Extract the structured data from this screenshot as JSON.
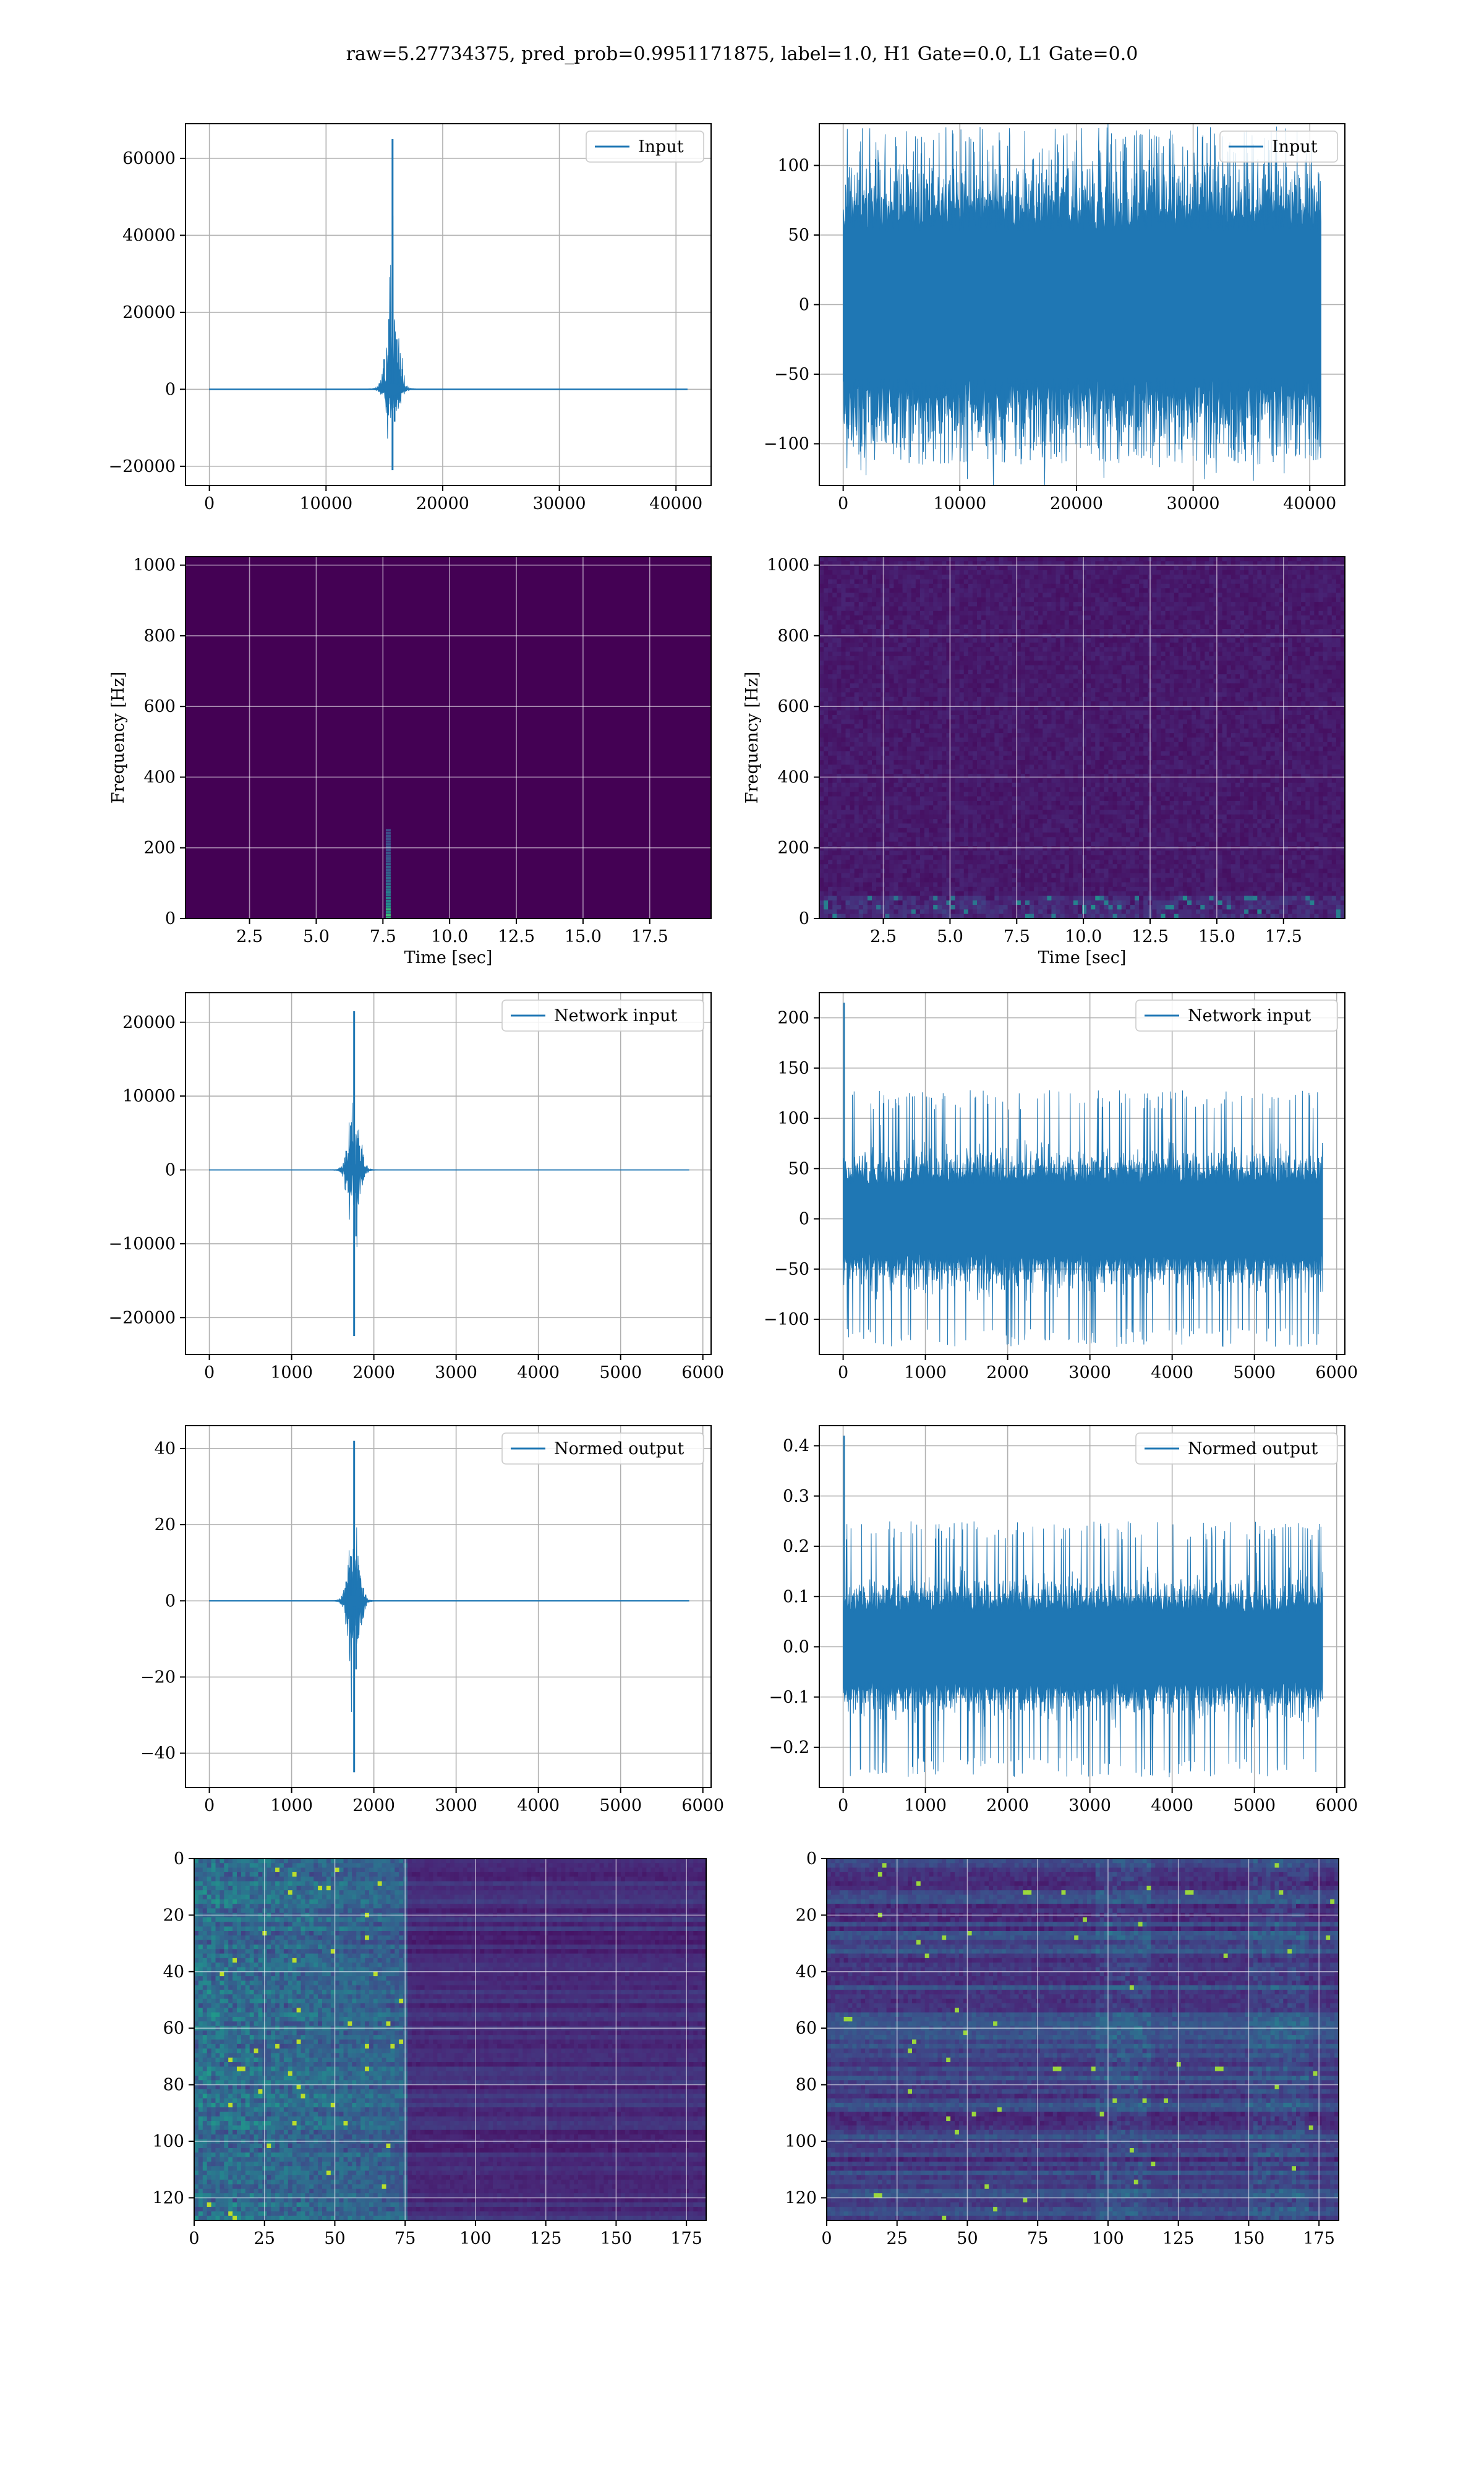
{
  "figure": {
    "suptitle": "raw=5.27734375, pred_prob=0.9951171875, label=1.0, H1 Gate=0.0, L1 Gate=0.0",
    "line_color": "#1f77b4"
  },
  "chart_data": [
    {
      "id": "h1-input",
      "type": "line",
      "legend": "Input",
      "xlim": [
        -2048,
        43008
      ],
      "ylim": [
        -25000,
        69000
      ],
      "xticks": [
        0,
        10000,
        20000,
        30000,
        40000
      ],
      "yticks": [
        -20000,
        0,
        20000,
        40000,
        60000
      ],
      "xticklabels": [
        "0",
        "10000",
        "20000",
        "30000",
        "40000"
      ],
      "yticklabels": [
        "−20000",
        "0",
        "20000",
        "40000",
        "60000"
      ],
      "signal": {
        "kind": "burst",
        "x_end": 40960,
        "center": 15700,
        "peak": 65000,
        "trough": -21000,
        "noise": 120,
        "extent": 1200
      }
    },
    {
      "id": "l1-input",
      "type": "line",
      "legend": "Input",
      "xlim": [
        -2048,
        43008
      ],
      "ylim": [
        -130,
        130
      ],
      "xticks": [
        0,
        10000,
        20000,
        30000,
        40000
      ],
      "yticks": [
        -100,
        -50,
        0,
        50,
        100
      ],
      "xticklabels": [
        "0",
        "10000",
        "20000",
        "30000",
        "40000"
      ],
      "yticklabels": [
        "−100",
        "−50",
        "0",
        "50",
        "100"
      ],
      "signal": {
        "kind": "noise",
        "x_end": 40960,
        "band": 70,
        "max": 128,
        "min": -115
      }
    },
    {
      "id": "h1-spectrogram",
      "type": "heatmap",
      "colormap": "viridis",
      "xlabel": "Time [sec]",
      "ylabel": "Frequency [Hz]",
      "xlim": [
        0.1,
        19.8
      ],
      "ylim": [
        0,
        1024
      ],
      "xticks": [
        2.5,
        5.0,
        7.5,
        10.0,
        12.5,
        15.0,
        17.5
      ],
      "yticks": [
        0,
        200,
        400,
        600,
        800,
        1000
      ],
      "xticklabels": [
        "2.5",
        "5.0",
        "7.5",
        "10.0",
        "12.5",
        "15.0",
        "17.5"
      ],
      "yticklabels": [
        "0",
        "200",
        "400",
        "600",
        "800",
        "1000"
      ],
      "signal": {
        "kind": "chirp",
        "time": 7.7,
        "fmax": 250
      }
    },
    {
      "id": "l1-spectrogram",
      "type": "heatmap",
      "colormap": "viridis",
      "xlabel": "Time [sec]",
      "ylabel": "Frequency [Hz]",
      "xlim": [
        0.1,
        19.8
      ],
      "ylim": [
        0,
        1024
      ],
      "xticks": [
        2.5,
        5.0,
        7.5,
        10.0,
        12.5,
        15.0,
        17.5
      ],
      "yticks": [
        0,
        200,
        400,
        600,
        800,
        1000
      ],
      "xticklabels": [
        "2.5",
        "5.0",
        "7.5",
        "10.0",
        "12.5",
        "15.0",
        "17.5"
      ],
      "yticklabels": [
        "0",
        "200",
        "400",
        "600",
        "800",
        "1000"
      ],
      "signal": {
        "kind": "noisefloor"
      }
    },
    {
      "id": "h1-network-input",
      "type": "line",
      "legend": "Network input",
      "xlim": [
        -290,
        6100
      ],
      "ylim": [
        -25000,
        24000
      ],
      "xticks": [
        0,
        1000,
        2000,
        3000,
        4000,
        5000,
        6000
      ],
      "yticks": [
        -20000,
        -10000,
        0,
        10000,
        20000
      ],
      "xticklabels": [
        "0",
        "1000",
        "2000",
        "3000",
        "4000",
        "5000",
        "6000"
      ],
      "yticklabels": [
        "−20000",
        "−10000",
        "0",
        "10000",
        "20000"
      ],
      "signal": {
        "kind": "burst",
        "x_end": 5830,
        "center": 1760,
        "peak": 21500,
        "trough": -22500,
        "noise": 40,
        "extent": 160
      }
    },
    {
      "id": "l1-network-input",
      "type": "line",
      "legend": "Network input",
      "xlim": [
        -290,
        6100
      ],
      "ylim": [
        -135,
        225
      ],
      "xticks": [
        0,
        1000,
        2000,
        3000,
        4000,
        5000,
        6000
      ],
      "yticks": [
        -100,
        -50,
        0,
        50,
        100,
        150,
        200
      ],
      "xticklabels": [
        "0",
        "1000",
        "2000",
        "3000",
        "4000",
        "5000",
        "6000"
      ],
      "yticklabels": [
        "−100",
        "−50",
        "0",
        "50",
        "100",
        "150",
        "200"
      ],
      "signal": {
        "kind": "noise",
        "x_end": 5830,
        "band": 45,
        "max": 128,
        "min": -128,
        "spike": 215
      }
    },
    {
      "id": "h1-normed-output",
      "type": "line",
      "legend": "Normed output",
      "xlim": [
        -290,
        6100
      ],
      "ylim": [
        -49,
        46
      ],
      "xticks": [
        0,
        1000,
        2000,
        3000,
        4000,
        5000,
        6000
      ],
      "yticks": [
        -40,
        -20,
        0,
        20,
        40
      ],
      "xticklabels": [
        "0",
        "1000",
        "2000",
        "3000",
        "4000",
        "5000",
        "6000"
      ],
      "yticklabels": [
        "−40",
        "−20",
        "0",
        "20",
        "40"
      ],
      "signal": {
        "kind": "burst",
        "x_end": 5830,
        "center": 1760,
        "peak": 42,
        "trough": -45,
        "noise": 0.1,
        "extent": 160
      }
    },
    {
      "id": "l1-normed-output",
      "type": "line",
      "legend": "Normed output",
      "xlim": [
        -290,
        6100
      ],
      "ylim": [
        -0.28,
        0.44
      ],
      "xticks": [
        0,
        1000,
        2000,
        3000,
        4000,
        5000,
        6000
      ],
      "yticks": [
        -0.2,
        -0.1,
        0.0,
        0.1,
        0.2,
        0.3,
        0.4
      ],
      "xticklabels": [
        "0",
        "1000",
        "2000",
        "3000",
        "4000",
        "5000",
        "6000"
      ],
      "yticklabels": [
        "−0.2",
        "−0.1",
        "0.0",
        "0.1",
        "0.2",
        "0.3",
        "0.4"
      ],
      "signal": {
        "kind": "noise",
        "x_end": 5830,
        "band": 0.09,
        "max": 0.25,
        "min": -0.26,
        "spike": 0.42
      }
    },
    {
      "id": "h1-feature-map",
      "type": "heatmap",
      "colormap": "viridis",
      "xlim": [
        0,
        182
      ],
      "ylim": [
        128,
        0
      ],
      "xticks": [
        0,
        25,
        50,
        75,
        100,
        125,
        150,
        175
      ],
      "yticks": [
        0,
        20,
        40,
        60,
        80,
        100,
        120
      ],
      "xticklabels": [
        "0",
        "25",
        "50",
        "75",
        "100",
        "125",
        "150",
        "175"
      ],
      "yticklabels": [
        "0",
        "20",
        "40",
        "60",
        "80",
        "100",
        "120"
      ],
      "signal": {
        "kind": "features",
        "active_from": 0,
        "active_to": 75
      }
    },
    {
      "id": "l1-feature-map",
      "type": "heatmap",
      "colormap": "viridis",
      "xlim": [
        0,
        182
      ],
      "ylim": [
        128,
        0
      ],
      "xticks": [
        0,
        25,
        50,
        75,
        100,
        125,
        150,
        175
      ],
      "yticks": [
        0,
        20,
        40,
        60,
        80,
        100,
        120
      ],
      "xticklabels": [
        "0",
        "25",
        "50",
        "75",
        "100",
        "125",
        "150",
        "175"
      ],
      "yticklabels": [
        "0",
        "20",
        "40",
        "60",
        "80",
        "100",
        "120"
      ],
      "signal": {
        "kind": "features-spread"
      }
    }
  ]
}
